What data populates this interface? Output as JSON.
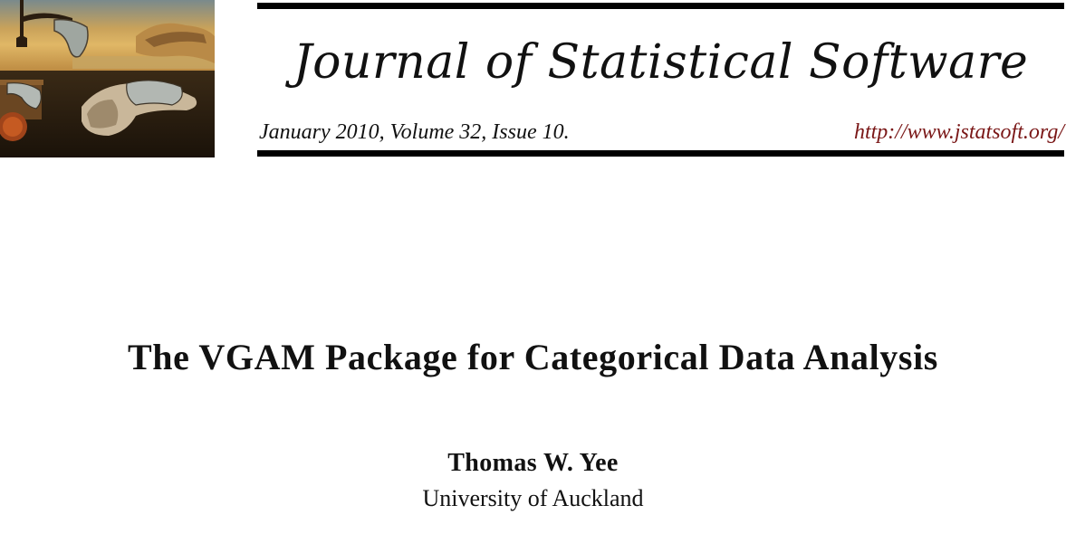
{
  "header": {
    "journal_name": "Journal of Statistical Software",
    "issue_line": "January 2010, Volume 32, Issue 10.",
    "url": "http://www.jstatsoft.org/",
    "url_color": "#7a1717",
    "cover_image": "melting-clocks-painting"
  },
  "paper": {
    "title": "The VGAM Package for Categorical Data Analysis",
    "author": "Thomas W. Yee",
    "affiliation": "University of Auckland"
  }
}
